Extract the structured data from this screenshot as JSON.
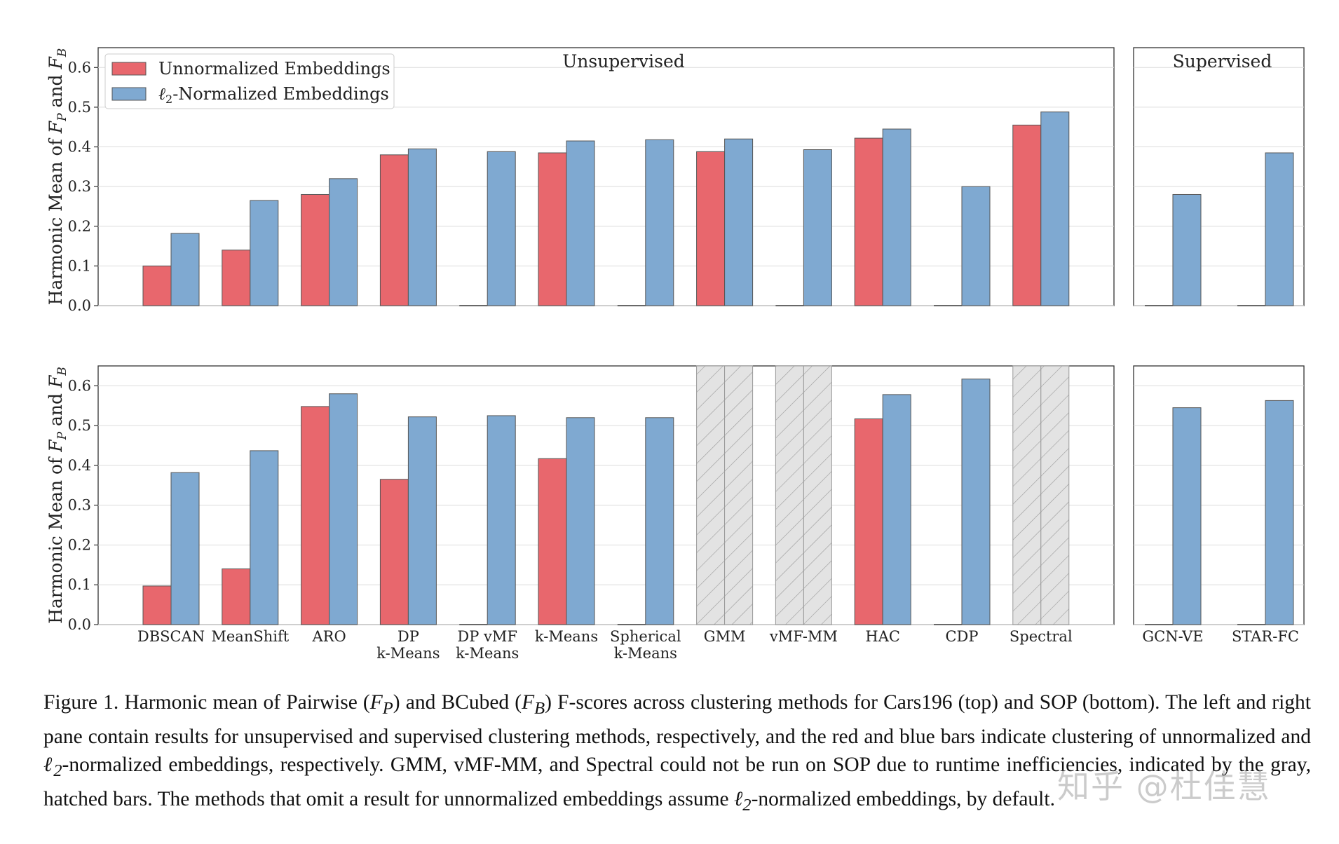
{
  "chart_data": {
    "type": "bar",
    "colors": {
      "unnormalized": "#e8676d",
      "normalized": "#7fa9d1",
      "na": "#e3e3e3",
      "edge": "#555555"
    },
    "legend": [
      "Unnormalized Embeddings",
      "ℓ2-Normalized Embeddings"
    ],
    "legend_placement": "top-left",
    "ylabel": "Harmonic Mean of F_P and F_B",
    "ylabel_parts": [
      "Harmonic Mean of ",
      "F",
      "P",
      " and ",
      "F",
      "B"
    ],
    "pane_titles": {
      "left": "Unsupervised",
      "right": "Supervised"
    },
    "unsupervised_methods": [
      {
        "label": [
          "DBSCAN"
        ]
      },
      {
        "label": [
          "MeanShift"
        ]
      },
      {
        "label": [
          "ARO"
        ]
      },
      {
        "label": [
          "DP",
          "k-Means"
        ]
      },
      {
        "label": [
          "DP vMF",
          "k-Means"
        ]
      },
      {
        "label": [
          "k-Means"
        ]
      },
      {
        "label": [
          "Spherical",
          "k-Means"
        ]
      },
      {
        "label": [
          "GMM"
        ]
      },
      {
        "label": [
          "vMF-MM"
        ]
      },
      {
        "label": [
          "HAC"
        ]
      },
      {
        "label": [
          "CDP"
        ]
      },
      {
        "label": [
          "Spectral"
        ]
      }
    ],
    "supervised_methods": [
      {
        "label": [
          "GCN-VE"
        ]
      },
      {
        "label": [
          "STAR-FC"
        ]
      }
    ],
    "panels": [
      {
        "dataset": "Cars196",
        "ylim": [
          0,
          0.65
        ],
        "yticks": [
          "0.0",
          "0.1",
          "0.2",
          "0.3",
          "0.4",
          "0.5",
          "0.6"
        ],
        "unsupervised": {
          "unnormalized": [
            0.1,
            0.14,
            0.28,
            0.38,
            0,
            0.385,
            0,
            0.388,
            0,
            0.422,
            0,
            0.455
          ],
          "normalized": [
            0.182,
            0.265,
            0.32,
            0.395,
            0.388,
            0.415,
            0.418,
            0.42,
            0.393,
            0.445,
            0.3,
            0.488
          ],
          "na": []
        },
        "supervised": {
          "unnormalized": [
            0,
            0
          ],
          "normalized": [
            0.28,
            0.385
          ]
        }
      },
      {
        "dataset": "SOP",
        "ylim": [
          0,
          0.65
        ],
        "yticks": [
          "0.0",
          "0.1",
          "0.2",
          "0.3",
          "0.4",
          "0.5",
          "0.6"
        ],
        "unsupervised": {
          "unnormalized": [
            0.097,
            0.14,
            0.548,
            0.365,
            0,
            0.417,
            0,
            null,
            null,
            0.517,
            0,
            null
          ],
          "normalized": [
            0.382,
            0.437,
            0.58,
            0.522,
            0.525,
            0.52,
            0.52,
            null,
            null,
            0.578,
            0.617,
            null
          ],
          "na": [
            7,
            8,
            11
          ]
        },
        "supervised": {
          "unnormalized": [
            0,
            0
          ],
          "normalized": [
            0.545,
            0.563
          ]
        }
      }
    ]
  },
  "caption": {
    "s1": "Figure 1.  Harmonic mean of Pairwise (",
    "fp_main": "F",
    "fp_sub": "P",
    "s2": ") and BCubed (",
    "fb_main": "F",
    "fb_sub": "B",
    "s3": ") F-scores across clustering methods for Cars196 (top) and SOP (bottom). The left and right pane contain results for unsupervised and supervised clustering methods, respectively, and the red and blue bars indicate clustering of unnormalized and ",
    "l2_main": "ℓ",
    "l2_sub": "2",
    "s4": "-normalized embeddings, respectively.  GMM, vMF-MM, and Spectral could not be run on SOP due to runtime inefficiencies, indicated by the gray, hatched bars.  The methods that omit a result for unnormalized embeddings assume ",
    "l2b_main": "ℓ",
    "l2b_sub": "2",
    "s5": "-normalized embeddings, by default."
  },
  "watermark": "知乎 @杜佳慧"
}
